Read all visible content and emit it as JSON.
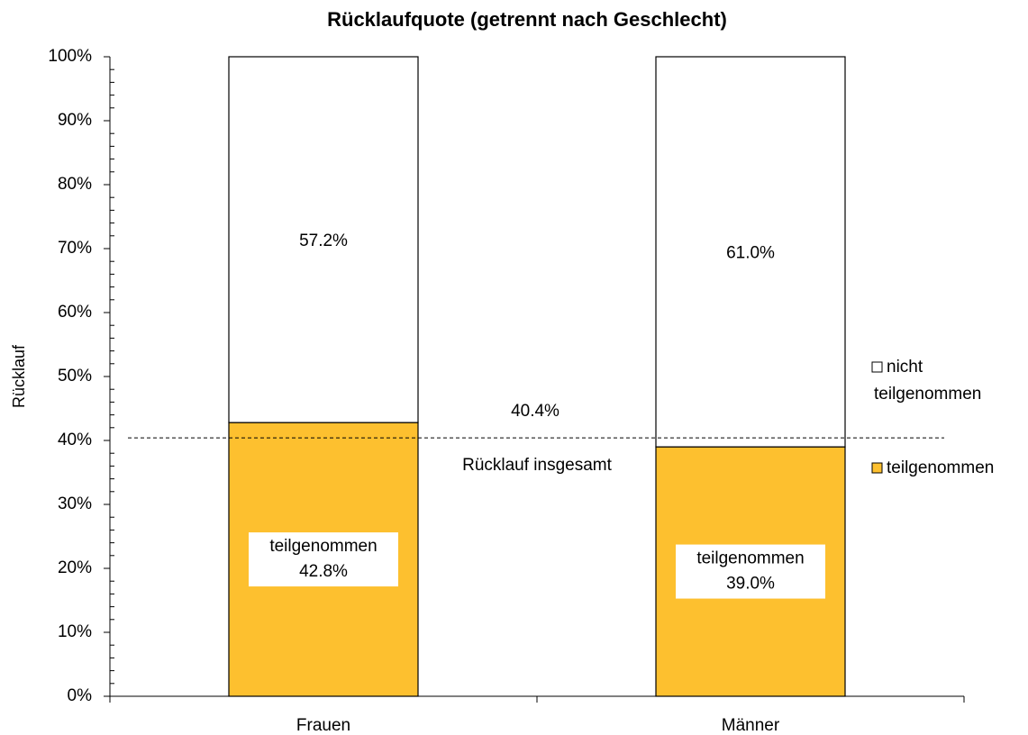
{
  "chart_data": {
    "type": "stacked_bar",
    "title": "Rücklaufquote (getrennt nach Geschlecht)",
    "y_label": "Rücklauf",
    "categories": [
      "Frauen",
      "Männer"
    ],
    "series": [
      {
        "name": "teilgenommen",
        "color": "#fdc02f",
        "values": [
          42.8,
          39.0
        ],
        "value_labels": [
          "42.8%",
          "39.0%"
        ]
      },
      {
        "name": "nicht teilgenommen",
        "color": "#ffffff",
        "values": [
          57.2,
          61.0
        ],
        "value_labels": [
          "57.2%",
          "61.0%"
        ]
      }
    ],
    "reference_line": {
      "value": 40.4,
      "label": "40.4%",
      "text": "Rücklauf insgesamt"
    },
    "ylim": [
      0,
      100
    ],
    "yticks": [
      {
        "value": 0,
        "label": "0%"
      },
      {
        "value": 10,
        "label": "10%"
      },
      {
        "value": 20,
        "label": "20%"
      },
      {
        "value": 30,
        "label": "30%"
      },
      {
        "value": 40,
        "label": "40%"
      },
      {
        "value": 50,
        "label": "50%"
      },
      {
        "value": 60,
        "label": "60%"
      },
      {
        "value": 70,
        "label": "70%"
      },
      {
        "value": 80,
        "label": "80%"
      },
      {
        "value": 90,
        "label": "90%"
      },
      {
        "value": 100,
        "label": "100%"
      }
    ],
    "yminorticks": [
      2,
      4,
      6,
      8,
      12,
      14,
      16,
      18,
      22,
      24,
      26,
      28,
      32,
      34,
      36,
      38,
      42,
      44,
      46,
      48,
      52,
      54,
      56,
      58,
      62,
      64,
      66,
      68,
      72,
      74,
      76,
      78,
      82,
      84,
      86,
      88,
      92,
      94,
      96,
      98
    ],
    "legend": "right"
  }
}
